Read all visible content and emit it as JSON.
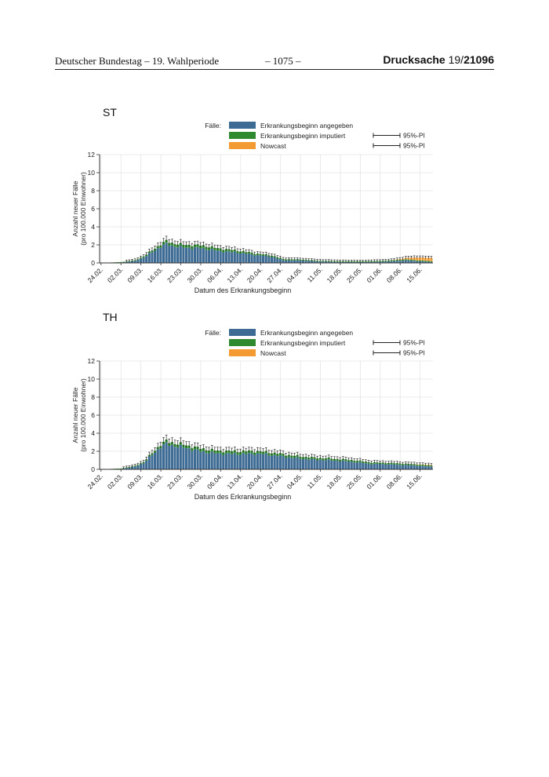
{
  "header": {
    "left": "Deutscher Bundestag – 19. Wahlperiode",
    "center": "– 1075 –",
    "right_prefix": "Drucksache",
    "right_session": " 19/",
    "right_number": "21096"
  },
  "colors": {
    "reported": "#3e6b94",
    "imputed": "#2f8a2f",
    "nowcast": "#f39a33",
    "grid": "#e4e4e4",
    "axis": "#333333"
  },
  "legend": {
    "label": "Fälle:",
    "items": [
      {
        "name": "Erkrankungsbeginn angegeben",
        "color": "#3e6b94"
      },
      {
        "name": "Erkrankungsbeginn imputiert",
        "color": "#2f8a2f",
        "interval": "95%-PI"
      },
      {
        "name": "Nowcast",
        "color": "#f39a33",
        "interval": "95%-PI"
      }
    ]
  },
  "chart_data": [
    {
      "type": "bar",
      "stacked": true,
      "title": "ST",
      "xlabel": "Datum des Erkrankungsbeginn",
      "ylabel_line1": "Anzahl neuer Fälle",
      "ylabel_line2": "(pro 100.000 Einwohner)",
      "ylim": [
        0,
        12
      ],
      "yticks": [
        "0",
        "2",
        "4",
        "6",
        "8",
        "10",
        "12"
      ],
      "xticks": [
        "24.02.",
        "02.03.",
        "09.03.",
        "16.03.",
        "23.03.",
        "30.03.",
        "06.04.",
        "13.04.",
        "20.04.",
        "27.04.",
        "04.05.",
        "11.05.",
        "18.05.",
        "25.05.",
        "01.06.",
        "08.06.",
        "15.06."
      ],
      "grid": true,
      "legend_position": "top-right",
      "x_start": "2020-02-24",
      "x_end": "2020-06-19",
      "anchors": {
        "reported": [
          [
            "2020-02-24",
            0.0
          ],
          [
            "2020-03-02",
            0.05
          ],
          [
            "2020-03-07",
            0.2
          ],
          [
            "2020-03-10",
            0.6
          ],
          [
            "2020-03-13",
            1.2
          ],
          [
            "2020-03-16",
            1.8
          ],
          [
            "2020-03-18",
            2.1
          ],
          [
            "2020-03-20",
            1.9
          ],
          [
            "2020-03-24",
            1.7
          ],
          [
            "2020-03-30",
            1.65
          ],
          [
            "2020-04-05",
            1.35
          ],
          [
            "2020-04-12",
            1.15
          ],
          [
            "2020-04-19",
            0.85
          ],
          [
            "2020-04-24",
            0.7
          ],
          [
            "2020-04-28",
            0.3
          ],
          [
            "2020-05-04",
            0.28
          ],
          [
            "2020-05-11",
            0.15
          ],
          [
            "2020-05-18",
            0.1
          ],
          [
            "2020-05-25",
            0.08
          ],
          [
            "2020-06-01",
            0.12
          ],
          [
            "2020-06-06",
            0.2
          ],
          [
            "2020-06-10",
            0.3
          ],
          [
            "2020-06-14",
            0.2
          ],
          [
            "2020-06-19",
            0.1
          ]
        ],
        "imputed": [
          [
            "2020-02-24",
            0.0
          ],
          [
            "2020-03-09",
            0.1
          ],
          [
            "2020-03-18",
            0.3
          ],
          [
            "2020-04-01",
            0.3
          ],
          [
            "2020-04-20",
            0.15
          ],
          [
            "2020-05-10",
            0.08
          ],
          [
            "2020-06-05",
            0.1
          ],
          [
            "2020-06-19",
            0.1
          ]
        ],
        "nowcast": [
          [
            "2020-02-24",
            0.0
          ],
          [
            "2020-06-05",
            0.0
          ],
          [
            "2020-06-09",
            0.1
          ],
          [
            "2020-06-14",
            0.3
          ],
          [
            "2020-06-19",
            0.35
          ]
        ]
      }
    },
    {
      "type": "bar",
      "stacked": true,
      "title": "TH",
      "xlabel": "Datum des Erkrankungsbeginn",
      "ylabel_line1": "Anzahl neuer Fälle",
      "ylabel_line2": "(pro 100.000 Einwohner)",
      "ylim": [
        0,
        12
      ],
      "yticks": [
        "0",
        "2",
        "4",
        "6",
        "8",
        "10",
        "12"
      ],
      "xticks": [
        "24.02.",
        "02.03.",
        "09.03.",
        "16.03.",
        "23.03.",
        "30.03.",
        "06.04.",
        "13.04.",
        "20.04.",
        "27.04.",
        "04.05.",
        "11.05.",
        "18.05.",
        "25.05.",
        "01.06.",
        "08.06.",
        "15.06."
      ],
      "grid": true,
      "legend_position": "top-right",
      "x_start": "2020-02-24",
      "x_end": "2020-06-19",
      "anchors": {
        "reported": [
          [
            "2020-02-24",
            0.0
          ],
          [
            "2020-03-02",
            0.05
          ],
          [
            "2020-03-07",
            0.3
          ],
          [
            "2020-03-10",
            0.7
          ],
          [
            "2020-03-13",
            1.6
          ],
          [
            "2020-03-16",
            2.5
          ],
          [
            "2020-03-18",
            2.8
          ],
          [
            "2020-03-21",
            2.6
          ],
          [
            "2020-03-26",
            2.3
          ],
          [
            "2020-03-30",
            2.0
          ],
          [
            "2020-04-05",
            1.75
          ],
          [
            "2020-04-12",
            1.7
          ],
          [
            "2020-04-19",
            1.75
          ],
          [
            "2020-04-25",
            1.55
          ],
          [
            "2020-05-01",
            1.3
          ],
          [
            "2020-05-08",
            1.1
          ],
          [
            "2020-05-15",
            1.0
          ],
          [
            "2020-05-22",
            0.85
          ],
          [
            "2020-05-29",
            0.6
          ],
          [
            "2020-06-05",
            0.55
          ],
          [
            "2020-06-12",
            0.45
          ],
          [
            "2020-06-19",
            0.3
          ]
        ],
        "imputed": [
          [
            "2020-02-24",
            0.0
          ],
          [
            "2020-03-09",
            0.1
          ],
          [
            "2020-03-18",
            0.3
          ],
          [
            "2020-04-10",
            0.3
          ],
          [
            "2020-05-10",
            0.2
          ],
          [
            "2020-06-19",
            0.12
          ]
        ],
        "nowcast": [
          [
            "2020-02-24",
            0.0
          ],
          [
            "2020-06-10",
            0.0
          ],
          [
            "2020-06-19",
            0.05
          ]
        ]
      }
    }
  ]
}
